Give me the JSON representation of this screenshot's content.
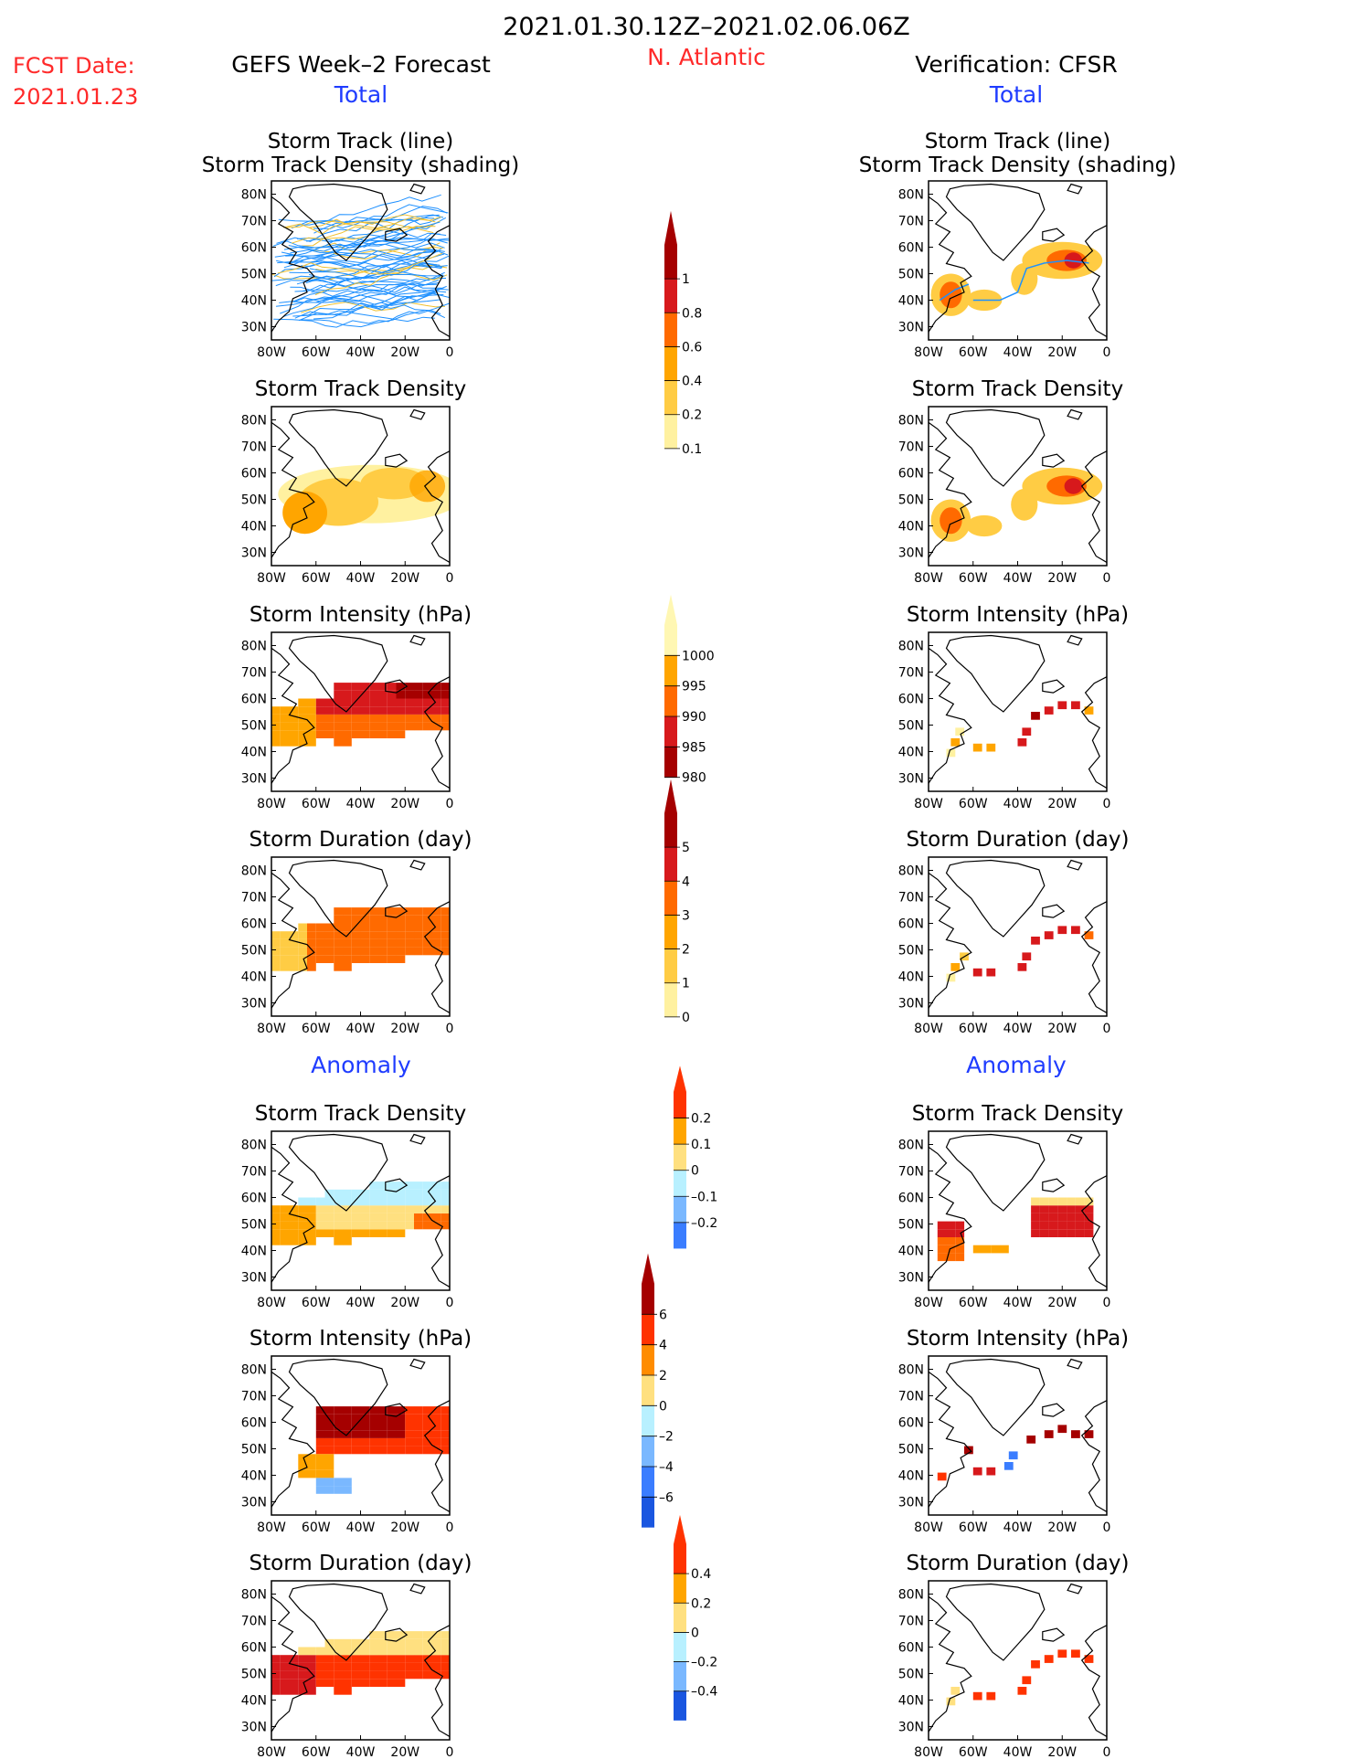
{
  "header": {
    "period": "2021.01.30.12Z–2021.02.06.06Z",
    "fcst_label": "FCST Date:",
    "fcst_date": "2021.01.23",
    "left_title": "GEFS Week–2 Forecast",
    "region": "N. Atlantic",
    "right_title": "Verification: CFSR"
  },
  "sections": {
    "total": "Total",
    "anomaly": "Anomaly"
  },
  "colors": {
    "red_text": "#ff2a2a",
    "blue_text": "#1f3cff",
    "track_line": "#1e90ff"
  },
  "axes": {
    "lat_ticks": [
      "80N",
      "70N",
      "60N",
      "50N",
      "40N",
      "30N"
    ],
    "lon_ticks": [
      "80W",
      "60W",
      "40W",
      "20W",
      "0"
    ]
  },
  "chart_data": [
    {
      "id": "gefs-total-track",
      "type": "heatmap",
      "title1": "Storm Track (line)",
      "title2": "Storm Track Density (shading)",
      "colorbar": "density",
      "style": "tracks",
      "xlim": [
        -80,
        0
      ],
      "ylim": [
        25,
        85
      ]
    },
    {
      "id": "cfsr-total-track",
      "type": "heatmap",
      "title1": "Storm Track (line)",
      "title2": "Storm Track Density (shading)",
      "colorbar": "density",
      "style": "cfsr-tracks",
      "xlim": [
        -80,
        0
      ],
      "ylim": [
        25,
        85
      ]
    },
    {
      "id": "gefs-total-density",
      "type": "heatmap",
      "title1": "Storm Track Density",
      "title2": "",
      "colorbar": "density",
      "style": "smooth-gefs",
      "xlim": [
        -80,
        0
      ],
      "ylim": [
        25,
        85
      ]
    },
    {
      "id": "cfsr-total-density",
      "type": "heatmap",
      "title1": "Storm Track Density",
      "title2": "",
      "colorbar": "density",
      "style": "smooth-cfsr",
      "xlim": [
        -80,
        0
      ],
      "ylim": [
        25,
        85
      ]
    },
    {
      "id": "gefs-total-intensity",
      "type": "heatmap",
      "title1": "Storm Intensity (hPa)",
      "title2": "",
      "colorbar": "intensity",
      "style": "gefs-intensity",
      "xlim": [
        -80,
        0
      ],
      "ylim": [
        25,
        85
      ]
    },
    {
      "id": "cfsr-total-intensity",
      "type": "heatmap",
      "title1": "Storm Intensity (hPa)",
      "title2": "",
      "colorbar": "intensity",
      "style": "cfsr-intensity",
      "xlim": [
        -80,
        0
      ],
      "ylim": [
        25,
        85
      ]
    },
    {
      "id": "gefs-total-duration",
      "type": "heatmap",
      "title1": "Storm Duration (day)",
      "title2": "",
      "colorbar": "duration",
      "style": "gefs-duration",
      "xlim": [
        -80,
        0
      ],
      "ylim": [
        25,
        85
      ]
    },
    {
      "id": "cfsr-total-duration",
      "type": "heatmap",
      "title1": "Storm Duration (day)",
      "title2": "",
      "colorbar": "duration",
      "style": "cfsr-duration",
      "xlim": [
        -80,
        0
      ],
      "ylim": [
        25,
        85
      ]
    },
    {
      "id": "gefs-anom-density",
      "type": "heatmap",
      "title1": "Storm Track Density",
      "title2": "",
      "colorbar": "anom-density",
      "style": "gefs-anom-density",
      "xlim": [
        -80,
        0
      ],
      "ylim": [
        25,
        85
      ]
    },
    {
      "id": "cfsr-anom-density",
      "type": "heatmap",
      "title1": "Storm Track Density",
      "title2": "",
      "colorbar": "anom-density",
      "style": "cfsr-anom-density",
      "xlim": [
        -80,
        0
      ],
      "ylim": [
        25,
        85
      ]
    },
    {
      "id": "gefs-anom-intensity",
      "type": "heatmap",
      "title1": "Storm Intensity (hPa)",
      "title2": "",
      "colorbar": "anom-intensity",
      "style": "gefs-anom-intensity",
      "xlim": [
        -80,
        0
      ],
      "ylim": [
        25,
        85
      ]
    },
    {
      "id": "cfsr-anom-intensity",
      "type": "heatmap",
      "title1": "Storm Intensity (hPa)",
      "title2": "",
      "colorbar": "anom-intensity",
      "style": "cfsr-anom-intensity",
      "xlim": [
        -80,
        0
      ],
      "ylim": [
        25,
        85
      ]
    },
    {
      "id": "gefs-anom-duration",
      "type": "heatmap",
      "title1": "Storm Duration (day)",
      "title2": "",
      "colorbar": "anom-duration",
      "style": "gefs-anom-duration",
      "xlim": [
        -80,
        0
      ],
      "ylim": [
        25,
        85
      ]
    },
    {
      "id": "cfsr-anom-duration",
      "type": "heatmap",
      "title1": "Storm Duration (day)",
      "title2": "",
      "colorbar": "anom-duration",
      "style": "cfsr-anom-duration",
      "xlim": [
        -80,
        0
      ],
      "ylim": [
        25,
        85
      ]
    }
  ],
  "colorbars": {
    "density": {
      "labels": [
        "1",
        "0.8",
        "0.6",
        "0.4",
        "0.2",
        "0.1"
      ],
      "colors": [
        "#a50000",
        "#d7191c",
        "#ff6a00",
        "#ffa500",
        "#ffcc44",
        "#fff1a0"
      ]
    },
    "intensity": {
      "labels": [
        "1000",
        "995",
        "990",
        "985",
        "980"
      ],
      "colors": [
        "#fff7b3",
        "#ffa500",
        "#ff6a00",
        "#d7191c",
        "#a50000"
      ]
    },
    "duration": {
      "labels": [
        "5",
        "4",
        "3",
        "2",
        "1",
        "0"
      ],
      "colors": [
        "#a50000",
        "#d7191c",
        "#ff6a00",
        "#ffa500",
        "#ffcc44",
        "#fff1a0"
      ]
    },
    "anom-density": {
      "labels": [
        "0.2",
        "0.1",
        "0",
        "–0.1",
        "–0.2"
      ],
      "colors": [
        "#ff3300",
        "#ffa500",
        "#ffe080",
        "#b8f0ff",
        "#7ab8ff",
        "#3a7dff"
      ]
    },
    "anom-intensity": {
      "labels": [
        "6",
        "4",
        "2",
        "0",
        "–2",
        "–4",
        "–6"
      ],
      "colors": [
        "#a50000",
        "#ff3300",
        "#ff8c00",
        "#ffe080",
        "#b8f0ff",
        "#7ab8ff",
        "#3a7dff",
        "#1a56e0"
      ]
    },
    "anom-duration": {
      "labels": [
        "0.4",
        "0.2",
        "0",
        "–0.2",
        "–0.4"
      ],
      "colors": [
        "#ff3300",
        "#ffa500",
        "#ffe080",
        "#b8f0ff",
        "#7ab8ff",
        "#1a56e0"
      ]
    }
  }
}
